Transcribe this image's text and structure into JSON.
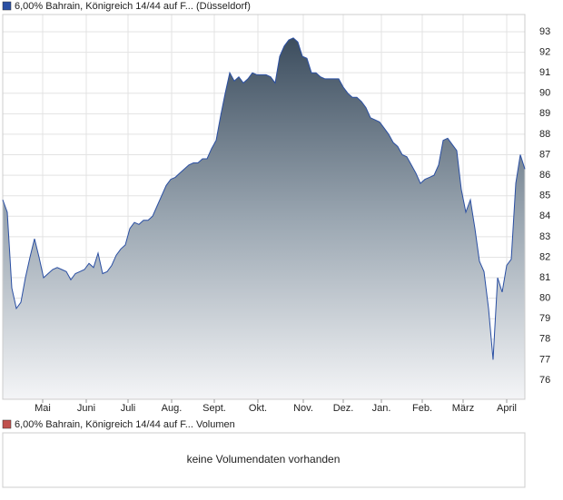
{
  "chart_data": {
    "type": "area",
    "series": [
      {
        "name": "6,00% Bahrain, Königreich 14/44 auf F... (Düsseldorf)",
        "color": "#2a4fa3",
        "values": [
          84.8,
          84.2,
          80.5,
          79.5,
          79.8,
          81.0,
          82.0,
          82.9,
          82.0,
          81.0,
          81.2,
          81.4,
          81.5,
          81.4,
          81.3,
          80.9,
          81.2,
          81.3,
          81.4,
          81.7,
          81.5,
          82.2,
          81.2,
          81.3,
          81.6,
          82.1,
          82.4,
          82.6,
          83.4,
          83.7,
          83.6,
          83.8,
          83.8,
          84.0,
          84.5,
          85.0,
          85.5,
          85.8,
          85.9,
          86.1,
          86.3,
          86.5,
          86.6,
          86.6,
          86.8,
          86.8,
          87.3,
          87.7,
          88.9,
          90.0,
          91.0,
          90.6,
          90.8,
          90.5,
          90.7,
          91.0,
          90.9,
          90.9,
          90.9,
          90.8,
          90.5,
          91.8,
          92.3,
          92.6,
          92.7,
          92.5,
          91.8,
          91.7,
          91.0,
          91.0,
          90.8,
          90.7,
          90.7,
          90.7,
          90.7,
          90.3,
          90.0,
          89.8,
          89.8,
          89.6,
          89.3,
          88.8,
          88.7,
          88.6,
          88.3,
          88.0,
          87.6,
          87.4,
          87.0,
          86.9,
          86.5,
          86.1,
          85.6,
          85.8,
          85.9,
          86.0,
          86.5,
          87.7,
          87.8,
          87.5,
          87.2,
          85.3,
          84.2,
          84.8,
          83.4,
          81.8,
          81.3,
          79.5,
          77.0,
          81.0,
          80.3,
          81.6,
          81.9,
          85.6,
          87.0,
          86.3
        ]
      }
    ],
    "xlim": [
      0,
      115
    ],
    "xticks": [
      {
        "value": 8.8,
        "label": "Mai"
      },
      {
        "value": 18.4,
        "label": "Juni"
      },
      {
        "value": 27.6,
        "label": "Juli"
      },
      {
        "value": 37.2,
        "label": "Aug."
      },
      {
        "value": 46.6,
        "label": "Sept."
      },
      {
        "value": 56.2,
        "label": "Okt."
      },
      {
        "value": 66.2,
        "label": "Nov."
      },
      {
        "value": 75,
        "label": "Dez."
      },
      {
        "value": 83.4,
        "label": "Jan."
      },
      {
        "value": 92.4,
        "label": "Feb."
      },
      {
        "value": 101.4,
        "label": "März"
      },
      {
        "value": 111,
        "label": "April"
      }
    ],
    "ylim": [
      75.07,
      93.84
    ],
    "yticks": [
      76,
      77,
      78,
      79,
      80,
      81,
      82,
      83,
      84,
      85,
      86,
      87,
      88,
      89,
      90,
      91,
      92,
      93
    ],
    "grid": true
  },
  "volume_panel": {
    "legend": "6,00% Bahrain, Königreich 14/44 auf F... Volumen",
    "color": "#c0504d",
    "message": "keine Volumendaten vorhanden"
  }
}
